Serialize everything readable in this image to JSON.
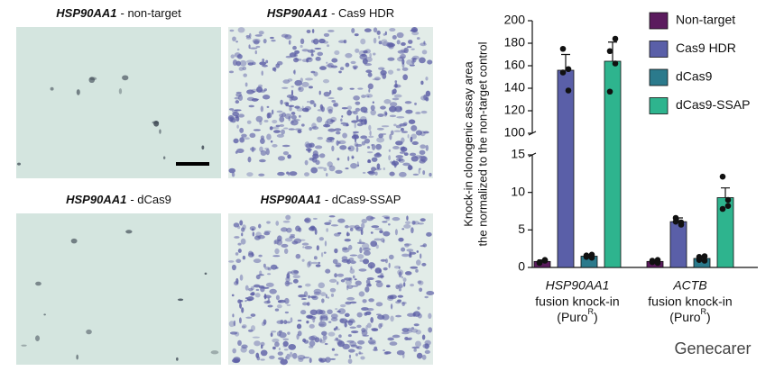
{
  "panels": [
    {
      "gene": "HSP90AA1",
      "label": "- non-target",
      "dense": false
    },
    {
      "gene": "HSP90AA1",
      "label": "- Cas9 HDR",
      "dense": true
    },
    {
      "gene": "HSP90AA1",
      "label": "- dCas9",
      "dense": false
    },
    {
      "gene": "HSP90AA1",
      "label": "- dCas9-SSAP",
      "dense": true
    }
  ],
  "watermark": "Genecarer",
  "chart_data": {
    "type": "bar",
    "ylabel": [
      "Knock-in clonogenic assay area",
      "the normalized to the non-target control"
    ],
    "categories": [
      "HSP90AA1",
      "ACTB"
    ],
    "category_notes": [
      {
        "line": "fusion knock-in",
        "pre": "(Puro",
        "sup": "R",
        "post": ")"
      },
      {
        "line": "fusion knock-in",
        "pre": "(Puro",
        "sup": "R",
        "post": ")"
      }
    ],
    "ylim": [
      0,
      200
    ],
    "ybreak": [
      15,
      100
    ],
    "yticks": [
      0,
      5,
      10,
      15,
      100,
      120,
      140,
      160,
      180,
      200
    ],
    "legend": "upper right",
    "series": [
      {
        "name": "Non-target",
        "color": "#5b1b5e",
        "values": [
          0.8,
          0.8
        ],
        "errors": [
          0.2,
          0.2
        ],
        "points": [
          [
            0.6,
            1.0,
            0.9,
            0.7
          ],
          [
            0.7,
            1.0,
            0.6,
            0.9
          ]
        ]
      },
      {
        "name": "Cas9 HDR",
        "color": "#5a5fa8",
        "values": [
          156,
          6.1
        ],
        "errors": [
          14,
          0.5
        ],
        "points": [
          [
            175,
            157,
            138,
            154
          ],
          [
            6.6,
            5.7,
            6.0,
            6.1
          ]
        ]
      },
      {
        "name": "dCas9",
        "color": "#2b7a8c",
        "values": [
          1.5,
          1.2
        ],
        "errors": [
          0.2,
          0.3
        ],
        "points": [
          [
            1.4,
            1.7,
            1.3,
            1.6
          ],
          [
            1.0,
            1.5,
            0.9,
            1.4
          ]
        ]
      },
      {
        "name": "dCas9-SSAP",
        "color": "#2eb48e",
        "values": [
          164,
          9.3
        ],
        "errors": [
          17,
          1.3
        ],
        "points": [
          [
            173,
            184,
            162,
            137
          ],
          [
            12.1,
            9.0,
            8.2,
            7.8
          ]
        ]
      }
    ]
  }
}
